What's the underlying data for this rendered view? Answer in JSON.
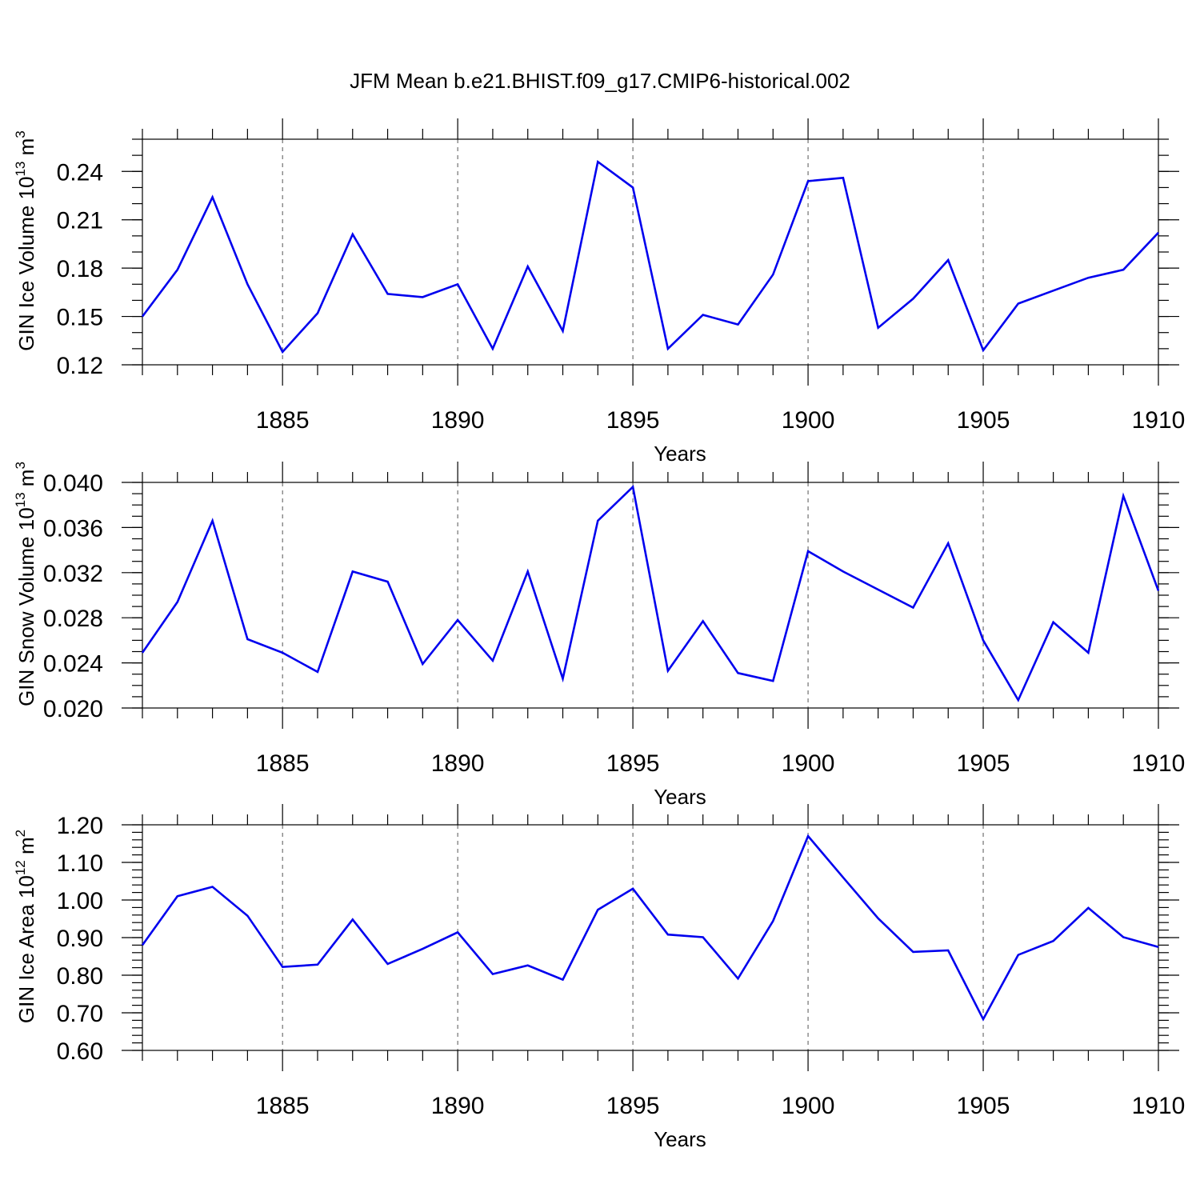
{
  "figure": {
    "title": "JFM Mean b.e21.BHIST.f09_g17.CMIP6-historical.002"
  },
  "chart_data": [
    {
      "type": "line",
      "title": "",
      "xlabel": "Years",
      "ylabel": "GIN Ice Volume 10",
      "ylabel_sup": "13",
      "ylabel_unit": " m",
      "ylabel_unit_sup": "3",
      "xlim": [
        1881,
        1910
      ],
      "ylim": [
        0.12,
        0.26
      ],
      "x_ticks": [
        1885,
        1890,
        1895,
        1900,
        1905,
        1910
      ],
      "y_ticks": [
        "0.12",
        "0.15",
        "0.18",
        "0.21",
        "0.24"
      ],
      "y_tick_values": [
        0.12,
        0.15,
        0.18,
        0.21,
        0.24
      ],
      "y_minor_step": 0.01,
      "grid": "vertical dashed at major x ticks",
      "series_color": "#0000ee",
      "x": [
        1881,
        1882,
        1883,
        1884,
        1885,
        1886,
        1887,
        1888,
        1889,
        1890,
        1891,
        1892,
        1893,
        1894,
        1895,
        1896,
        1897,
        1898,
        1899,
        1900,
        1901,
        1902,
        1903,
        1904,
        1905,
        1906,
        1907,
        1908,
        1909,
        1910
      ],
      "values": [
        0.15,
        0.179,
        0.224,
        0.17,
        0.128,
        0.152,
        0.201,
        0.164,
        0.162,
        0.17,
        0.13,
        0.181,
        0.141,
        0.246,
        0.23,
        0.13,
        0.151,
        0.145,
        0.176,
        0.234,
        0.236,
        0.143,
        0.161,
        0.185,
        0.129,
        0.158,
        0.166,
        0.174,
        0.179,
        0.202
      ]
    },
    {
      "type": "line",
      "title": "",
      "xlabel": "Years",
      "ylabel": "GIN Snow Volume 10",
      "ylabel_sup": "13",
      "ylabel_unit": " m",
      "ylabel_unit_sup": "3",
      "xlim": [
        1881,
        1910
      ],
      "ylim": [
        0.02,
        0.04
      ],
      "x_ticks": [
        1885,
        1890,
        1895,
        1900,
        1905,
        1910
      ],
      "y_ticks": [
        "0.020",
        "0.024",
        "0.028",
        "0.032",
        "0.036",
        "0.040"
      ],
      "y_tick_values": [
        0.02,
        0.024,
        0.028,
        0.032,
        0.036,
        0.04
      ],
      "y_minor_step": 0.001,
      "grid": "vertical dashed at major x ticks",
      "series_color": "#0000ee",
      "x": [
        1881,
        1882,
        1883,
        1884,
        1885,
        1886,
        1887,
        1888,
        1889,
        1890,
        1891,
        1892,
        1893,
        1894,
        1895,
        1896,
        1897,
        1898,
        1899,
        1900,
        1901,
        1902,
        1903,
        1904,
        1905,
        1906,
        1907,
        1908,
        1909,
        1910
      ],
      "values": [
        0.0249,
        0.0294,
        0.0366,
        0.0261,
        0.0249,
        0.0232,
        0.0321,
        0.0312,
        0.0239,
        0.0278,
        0.0242,
        0.0321,
        0.0226,
        0.0366,
        0.0396,
        0.0233,
        0.0277,
        0.0231,
        0.0224,
        0.0339,
        0.0321,
        0.0305,
        0.0289,
        0.0346,
        0.026,
        0.0207,
        0.0276,
        0.0249,
        0.0388,
        0.0304
      ]
    },
    {
      "type": "line",
      "title": "",
      "xlabel": "Years",
      "ylabel": "GIN Ice Area 10",
      "ylabel_sup": "12",
      "ylabel_unit": " m",
      "ylabel_unit_sup": "2",
      "xlim": [
        1881,
        1910
      ],
      "ylim": [
        0.6,
        1.2
      ],
      "x_ticks": [
        1885,
        1890,
        1895,
        1900,
        1905,
        1910
      ],
      "y_ticks": [
        "0.60",
        "0.70",
        "0.80",
        "0.90",
        "1.00",
        "1.10",
        "1.20"
      ],
      "y_tick_values": [
        0.6,
        0.7,
        0.8,
        0.9,
        1.0,
        1.1,
        1.2
      ],
      "y_minor_step": 0.02,
      "grid": "vertical dashed at major x ticks",
      "series_color": "#0000ee",
      "x": [
        1881,
        1882,
        1883,
        1884,
        1885,
        1886,
        1887,
        1888,
        1889,
        1890,
        1891,
        1892,
        1893,
        1894,
        1895,
        1896,
        1897,
        1898,
        1899,
        1900,
        1901,
        1902,
        1903,
        1904,
        1905,
        1906,
        1907,
        1908,
        1909,
        1910
      ],
      "values": [
        0.88,
        1.01,
        1.035,
        0.958,
        0.822,
        0.828,
        0.948,
        0.83,
        0.87,
        0.914,
        0.803,
        0.826,
        0.788,
        0.974,
        1.03,
        0.908,
        0.901,
        0.791,
        0.944,
        1.17,
        1.06,
        0.951,
        0.862,
        0.866,
        0.683,
        0.854,
        0.891,
        0.979,
        0.901,
        0.875
      ]
    }
  ]
}
